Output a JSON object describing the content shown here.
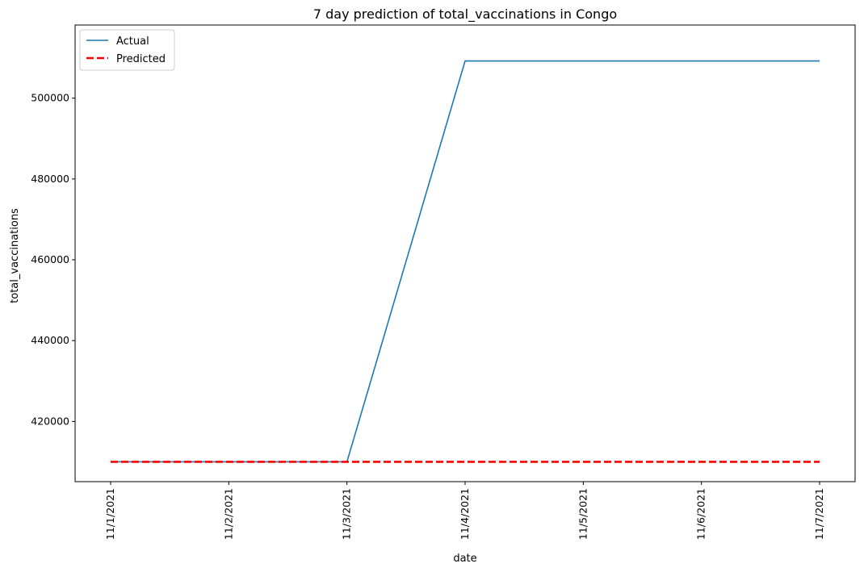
{
  "chart_data": {
    "type": "line",
    "title": "7 day prediction of total_vaccinations in Congo",
    "xlabel": "date",
    "ylabel": "total_vaccinations",
    "categories": [
      "11/1/2021",
      "11/2/2021",
      "11/3/2021",
      "11/4/2021",
      "11/5/2021",
      "11/6/2021",
      "11/7/2021"
    ],
    "ylim": [
      405100,
      518100
    ],
    "yticks": [
      420000,
      440000,
      460000,
      480000,
      500000
    ],
    "ytick_labels": [
      "420000",
      "440000",
      "460000",
      "480000",
      "500000"
    ],
    "legend_position": "top-left",
    "series": [
      {
        "name": "Actual",
        "color": "#1f77b4",
        "style": "solid",
        "values": [
          410000,
          410000,
          410000,
          509200,
          509200,
          509200,
          509200
        ]
      },
      {
        "name": "Predicted",
        "color": "#ff0000",
        "style": "dashed",
        "values": [
          410000,
          410000,
          410000,
          410000,
          410000,
          410000,
          410000
        ]
      }
    ],
    "grid": false
  }
}
